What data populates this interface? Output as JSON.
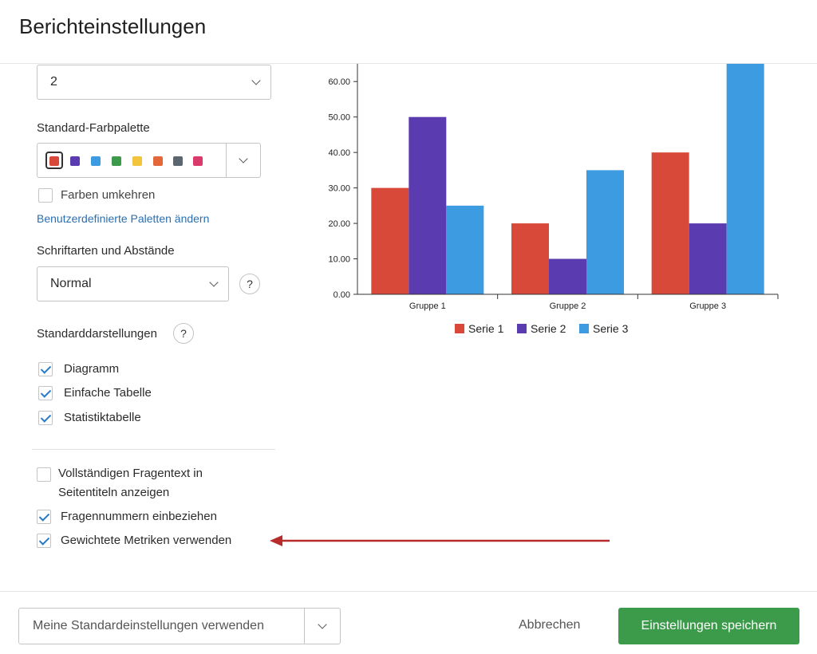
{
  "dialog": {
    "title": "Berichteinstellungen"
  },
  "top_select": {
    "value": "2"
  },
  "palette": {
    "label": "Standard-Farbpalette",
    "swatches": [
      "#d9493a",
      "#5a3bb0",
      "#3d9be2",
      "#3d9a4b",
      "#f2c53d",
      "#e4673a",
      "#5a6670",
      "#d93a6b"
    ],
    "reverse_label": "Farben umkehren",
    "reverse_checked": false,
    "custom_link": "Benutzerdefinierte Paletten ändern"
  },
  "fonts": {
    "label": "Schriftarten und Abstände",
    "value": "Normal",
    "help": "?"
  },
  "defaults": {
    "label": "Standarddarstellungen",
    "help": "?",
    "items": [
      {
        "label": "Diagramm",
        "checked": true
      },
      {
        "label": "Einfache Tabelle",
        "checked": true
      },
      {
        "label": "Statistiktabelle",
        "checked": true
      }
    ]
  },
  "options": {
    "full_text_line1": "Vollständigen Fragentext in",
    "full_text_line2": "Seitentiteln anzeigen",
    "question_numbers": "Fragennummern einbeziehen",
    "weighted_metrics": "Gewichtete Metriken verwenden"
  },
  "footer": {
    "defaults_button": "Meine Standardeinstellungen verwenden",
    "cancel_button": "Abbrechen",
    "save_button": "Einstellungen speichern"
  },
  "annotation": {
    "arrow_color": "#b82b2b"
  },
  "chart_data": {
    "type": "bar",
    "categories": [
      "Gruppe 1",
      "Gruppe 2",
      "Gruppe 3"
    ],
    "series": [
      {
        "name": "Serie 1",
        "color": "#d9493a",
        "values": [
          30,
          20,
          40
        ]
      },
      {
        "name": "Serie 2",
        "color": "#5a3bb0",
        "values": [
          50,
          10,
          20
        ]
      },
      {
        "name": "Serie 3",
        "color": "#3d9be2",
        "values": [
          25,
          35,
          65
        ]
      }
    ],
    "yticks": [
      "0.00",
      "10.00",
      "20.00",
      "30.00",
      "40.00",
      "50.00",
      "60.00"
    ],
    "ylim": [
      0,
      65
    ],
    "legend_position": "bottom"
  }
}
